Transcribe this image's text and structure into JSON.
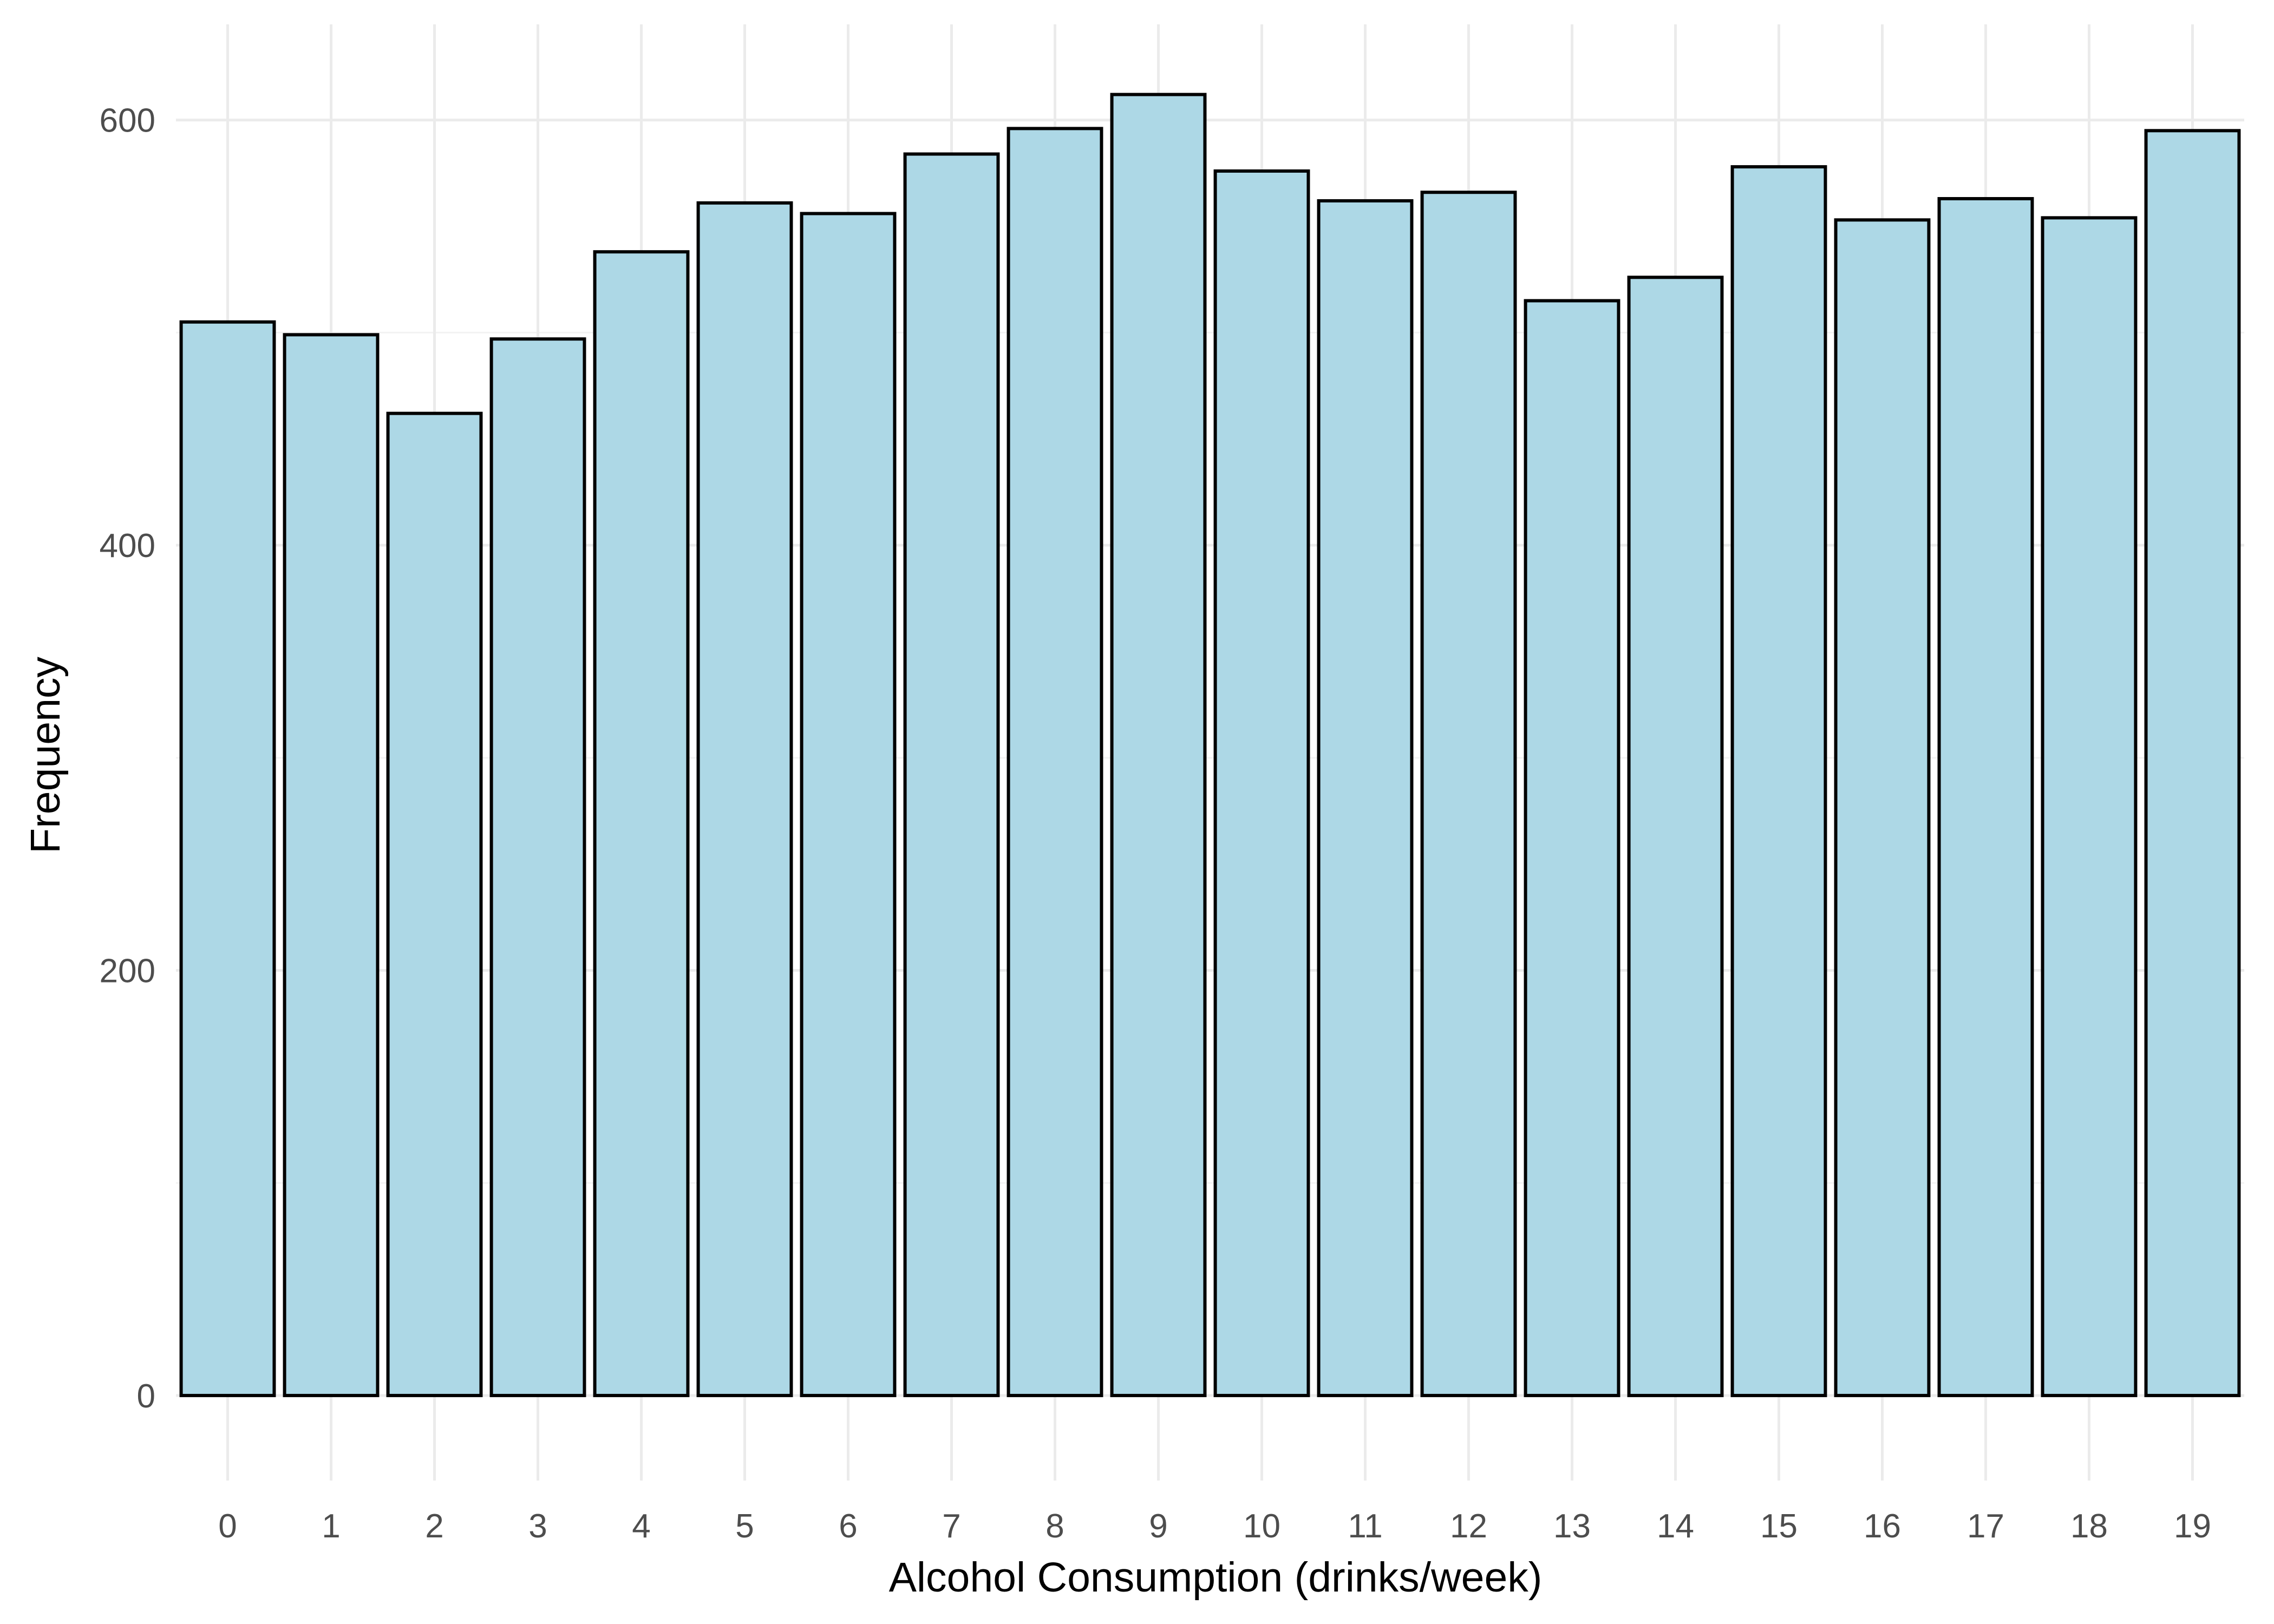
{
  "chart_data": {
    "type": "bar",
    "title": "",
    "xlabel": "Alcohol Consumption (drinks/week)",
    "ylabel": "Frequency",
    "categories": [
      "0",
      "1",
      "2",
      "3",
      "4",
      "5",
      "6",
      "7",
      "8",
      "9",
      "10",
      "11",
      "12",
      "13",
      "14",
      "15",
      "16",
      "17",
      "18",
      "19"
    ],
    "values": [
      505,
      499,
      462,
      497,
      538,
      561,
      556,
      584,
      596,
      612,
      576,
      562,
      566,
      515,
      526,
      578,
      553,
      563,
      554,
      595
    ],
    "ylim": [
      -40,
      645
    ],
    "y_ticks": [
      0,
      200,
      400,
      600
    ],
    "y_tick_labels": [
      "0",
      "200",
      "400",
      "600"
    ],
    "grid": true,
    "legend": "none",
    "bar_fill": "#add8e6",
    "bar_outline": "#000000",
    "background": "#ffffff"
  }
}
